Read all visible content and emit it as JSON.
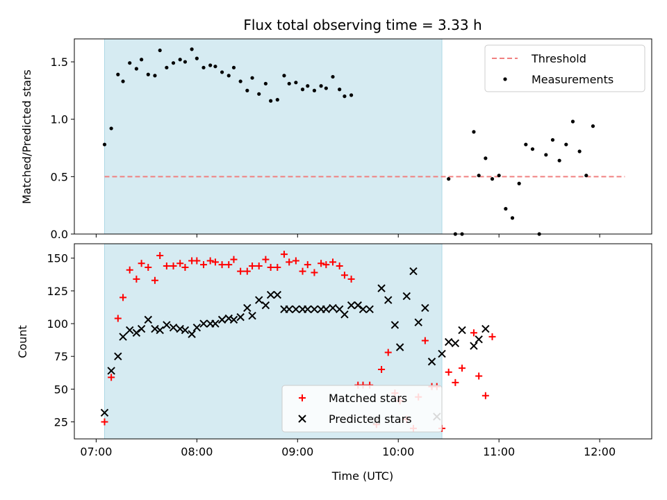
{
  "chart_data": [
    {
      "type": "scatter",
      "title": "Flux total observing time = 3.33 h",
      "ylabel": "Matched/Predicted stars",
      "xlabel": "",
      "ylim": [
        0,
        1.7
      ],
      "xlim": [
        "06:47",
        "12:31"
      ],
      "yticks": [
        0.0,
        0.5,
        1.0,
        1.5
      ],
      "ytick_labels": [
        "0.0",
        "0.5",
        "1.0",
        "1.5"
      ],
      "shaded_region": {
        "start": "07:05",
        "end": "10:26",
        "color": "#add8e6"
      },
      "legend_position": "upper right",
      "threshold": {
        "name": "Threshold",
        "value": 0.5,
        "x_start": "07:05",
        "x_end": "12:15",
        "color": "#f08080",
        "style": "dashed"
      },
      "series": [
        {
          "name": "Measurements",
          "color": "#000000",
          "marker": "dot",
          "x": [
            "07:05",
            "07:09",
            "07:13",
            "07:16",
            "07:20",
            "07:24",
            "07:27",
            "07:31",
            "07:35",
            "07:38",
            "07:42",
            "07:46",
            "07:50",
            "07:53",
            "07:57",
            "08:00",
            "08:04",
            "08:08",
            "08:11",
            "08:15",
            "08:19",
            "08:22",
            "08:26",
            "08:30",
            "08:33",
            "08:37",
            "08:41",
            "08:44",
            "08:48",
            "08:52",
            "08:55",
            "08:59",
            "09:03",
            "09:06",
            "09:10",
            "09:14",
            "09:17",
            "09:21",
            "09:25",
            "09:28",
            "09:32",
            "09:36",
            "09:39",
            "09:43",
            "09:47",
            "09:50",
            "09:54",
            "09:58",
            "10:01",
            "10:05",
            "10:09",
            "10:12",
            "10:16",
            "10:20",
            "10:23",
            "10:26",
            "10:30",
            "10:34",
            "10:37",
            "10:41",
            "10:45",
            "10:48",
            "10:52",
            "10:56",
            "10:59",
            "11:03",
            "11:07",
            "11:10",
            "11:14",
            "11:18",
            "11:21",
            "11:25",
            "11:29",
            "11:32",
            "11:36",
            "11:40",
            "11:43",
            "11:47",
            "11:51",
            "11:54",
            "11:58",
            "12:02",
            "12:05",
            "12:09",
            "12:13"
          ],
          "y": [
            0.78,
            0.92,
            1.39,
            1.33,
            1.49,
            1.44,
            1.52,
            1.39,
            1.38,
            1.6,
            1.45,
            1.49,
            1.52,
            1.5,
            1.61,
            1.53,
            1.45,
            1.47,
            1.46,
            1.41,
            1.38,
            1.45,
            1.33,
            1.25,
            1.36,
            1.22,
            1.31,
            1.16,
            1.17,
            1.38,
            1.31,
            1.32,
            1.26,
            1.29,
            1.25,
            1.29,
            1.27,
            1.37,
            1.26,
            1.2,
            1.21,
            null,
            null,
            null,
            null,
            null,
            null,
            null,
            null,
            null,
            null,
            null,
            null,
            null,
            null,
            null,
            null,
            null,
            null,
            null,
            null,
            null,
            null,
            null,
            null,
            null,
            null,
            null,
            null,
            null,
            null,
            null,
            null,
            null,
            null,
            null,
            null,
            null,
            null,
            null,
            null,
            null,
            null,
            null,
            null
          ]
        },
        {
          "name": "",
          "color": "#000000",
          "marker": "dot",
          "x": [
            "10:30",
            "10:34",
            "10:38",
            "10:45",
            "10:48",
            "10:52",
            "10:56",
            "11:00",
            "11:04",
            "11:08",
            "11:12",
            "11:16",
            "11:20",
            "11:24",
            "11:28",
            "11:32",
            "11:36",
            "11:40",
            "11:44",
            "11:48",
            "11:52",
            "11:56",
            "12:00",
            "12:04",
            "12:08"
          ],
          "y": [
            0.48,
            0.0,
            0.0,
            0.89,
            0.51,
            0.66,
            0.48,
            0.51,
            0.22,
            0.14,
            0.44,
            0.78,
            0.74,
            0.0,
            0.69,
            0.82,
            0.64,
            0.78,
            0.98,
            0.72,
            0.51,
            0.94,
            null,
            null,
            null
          ]
        }
      ]
    },
    {
      "type": "scatter",
      "title": "",
      "xlabel": "Time (UTC)",
      "ylabel": "Count",
      "ylim": [
        12,
        161
      ],
      "xlim": [
        "06:47",
        "12:31"
      ],
      "yticks": [
        25,
        50,
        75,
        100,
        125,
        150
      ],
      "ytick_labels": [
        "25",
        "50",
        "75",
        "100",
        "125",
        "150"
      ],
      "xticks": [
        "07:00",
        "08:00",
        "09:00",
        "10:00",
        "11:00",
        "12:00"
      ],
      "xtick_labels": [
        "07:00",
        "08:00",
        "09:00",
        "10:00",
        "11:00",
        "12:00"
      ],
      "shaded_region": {
        "start": "07:05",
        "end": "10:26",
        "color": "#add8e6"
      },
      "legend_position": "lower center",
      "series": [
        {
          "name": "Matched stars",
          "color": "#ff0000",
          "marker": "plus",
          "x": [
            "07:05",
            "07:09",
            "07:13",
            "07:16",
            "07:20",
            "07:24",
            "07:27",
            "07:31",
            "07:35",
            "07:38",
            "07:42",
            "07:46",
            "07:50",
            "07:53",
            "07:57",
            "08:00",
            "08:04",
            "08:08",
            "08:11",
            "08:15",
            "08:19",
            "08:22",
            "08:26",
            "08:30",
            "08:33",
            "08:37",
            "08:41",
            "08:44",
            "08:48",
            "08:52",
            "08:55",
            "08:59",
            "09:03",
            "09:06",
            "09:10",
            "09:14",
            "09:17",
            "09:21",
            "09:25",
            "09:28",
            "09:32",
            "09:36",
            "09:39",
            "09:43",
            "09:47",
            "09:50",
            "09:54",
            "09:58",
            "10:01",
            "10:05",
            "10:09",
            "10:12",
            "10:16",
            "10:20",
            "10:23",
            "10:26",
            "10:30",
            "10:34",
            "10:38",
            "10:45",
            "10:48",
            "10:52",
            "10:56",
            "11:00",
            "11:04",
            "11:08",
            "11:12",
            "11:16",
            "11:20",
            "11:24",
            "11:28",
            "11:32",
            "11:36",
            "11:40",
            "11:44",
            "11:48",
            "11:52",
            "11:56",
            "12:00",
            "12:04",
            "12:08"
          ],
          "y": [
            25,
            59,
            104,
            120,
            141,
            134,
            146,
            143,
            133,
            152,
            144,
            144,
            146,
            143,
            148,
            148,
            145,
            148,
            147,
            145,
            145,
            149,
            140,
            140,
            144,
            144,
            149,
            143,
            143,
            153,
            147,
            148,
            140,
            145,
            139,
            146,
            145,
            147,
            144,
            137,
            134,
            53,
            53,
            53,
            23,
            65,
            78,
            47,
            41,
            27,
            20,
            44,
            87,
            52,
            52,
            20,
            63,
            55,
            66,
            93,
            60,
            45,
            90,
            null,
            null,
            null,
            null,
            null,
            null,
            null,
            null,
            null,
            null,
            null,
            null,
            null,
            null,
            null,
            null,
            null,
            null
          ]
        },
        {
          "name": "Predicted stars",
          "color": "#000000",
          "marker": "x",
          "x": [
            "07:05",
            "07:09",
            "07:13",
            "07:16",
            "07:20",
            "07:24",
            "07:27",
            "07:31",
            "07:35",
            "07:38",
            "07:42",
            "07:46",
            "07:50",
            "07:53",
            "07:57",
            "08:00",
            "08:04",
            "08:08",
            "08:11",
            "08:15",
            "08:19",
            "08:22",
            "08:26",
            "08:30",
            "08:33",
            "08:37",
            "08:41",
            "08:44",
            "08:48",
            "08:52",
            "08:55",
            "08:59",
            "09:03",
            "09:06",
            "09:10",
            "09:14",
            "09:17",
            "09:21",
            "09:25",
            "09:28",
            "09:32",
            "09:36",
            "09:39",
            "09:43",
            "09:47",
            "09:50",
            "09:54",
            "09:58",
            "10:01",
            "10:05",
            "10:09",
            "10:12",
            "10:16",
            "10:20",
            "10:23",
            "10:26",
            "10:30",
            "10:34",
            "10:38",
            "10:45",
            "10:48",
            "10:52",
            "10:56",
            "11:00",
            "11:04",
            "11:08",
            "11:12",
            "11:16",
            "11:20",
            "11:24",
            "11:28",
            "11:32",
            "11:36",
            "11:40",
            "11:44",
            "11:48",
            "11:52",
            "11:56",
            "12:00",
            "12:04",
            "12:08"
          ],
          "y": [
            32,
            64,
            75,
            90,
            95,
            93,
            96,
            103,
            96,
            95,
            99,
            97,
            96,
            95,
            92,
            97,
            100,
            100,
            100,
            103,
            104,
            103,
            105,
            112,
            106,
            118,
            114,
            122,
            122,
            111,
            111,
            111,
            111,
            111,
            111,
            111,
            111,
            112,
            111,
            107,
            114,
            114,
            111,
            111,
            26,
            127,
            118,
            99,
            82,
            121,
            140,
            101,
            112,
            71,
            29,
            77,
            86,
            85,
            95,
            83,
            88,
            96,
            null,
            null,
            null,
            null,
            null,
            null,
            null,
            null,
            null,
            null,
            null,
            null,
            null,
            null,
            null,
            null,
            null,
            null,
            null
          ]
        }
      ]
    }
  ]
}
